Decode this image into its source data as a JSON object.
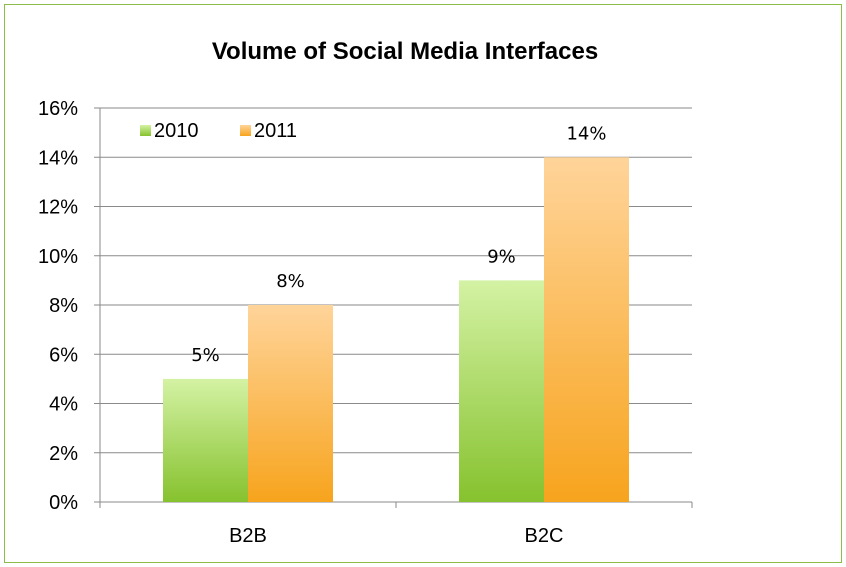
{
  "chart_data": {
    "type": "bar",
    "title": "Volume of Social Media Interfaces",
    "categories": [
      "B2B",
      "B2C"
    ],
    "series": [
      {
        "name": "2010",
        "values": [
          5,
          9
        ],
        "color_top": "#d4f2a4",
        "color_bottom": "#86c22e"
      },
      {
        "name": "2011",
        "values": [
          8,
          14
        ],
        "color_top": "#ffd49a",
        "color_bottom": "#f7a41d"
      }
    ],
    "data_labels": [
      [
        "5%",
        "9%"
      ],
      [
        "8%",
        "14%"
      ]
    ],
    "ylim": [
      0,
      16
    ],
    "yticks": [
      "0%",
      "2%",
      "4%",
      "6%",
      "8%",
      "10%",
      "12%",
      "14%",
      "16%"
    ],
    "grid": true,
    "legend_position": "top-left",
    "frame_color": "#8cbd4a"
  }
}
